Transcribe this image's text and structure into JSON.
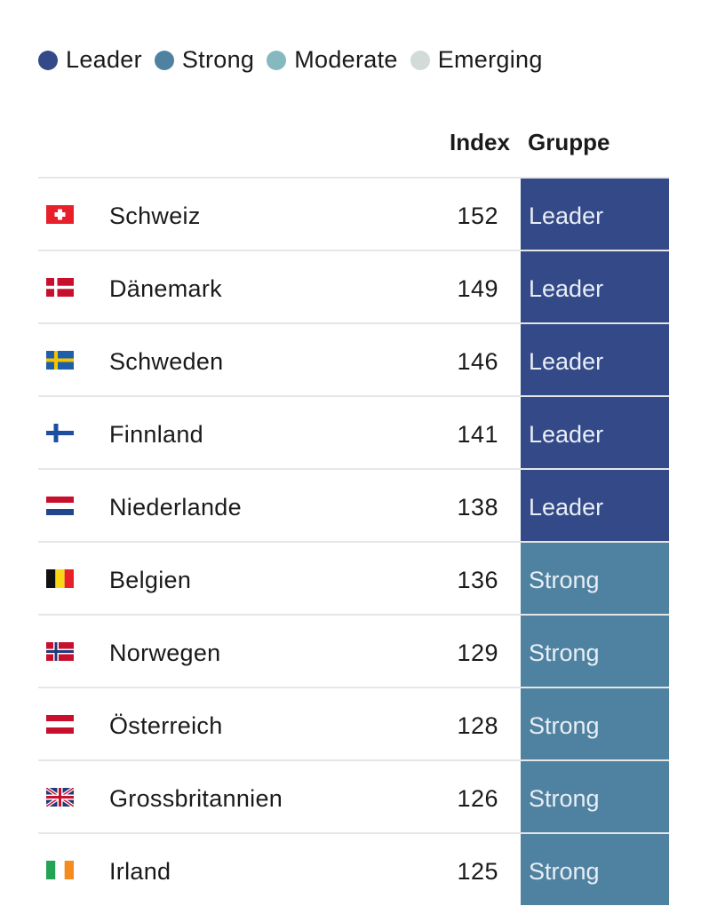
{
  "colors": {
    "Leader": "#344a88",
    "Strong": "#4f82a1",
    "Moderate": "#86b8bf",
    "Emerging": "#d2dbd8"
  },
  "legend": [
    {
      "label": "Leader",
      "color": "#344a88"
    },
    {
      "label": "Strong",
      "color": "#4f82a1"
    },
    {
      "label": "Moderate",
      "color": "#86b8bf"
    },
    {
      "label": "Emerging",
      "color": "#d2dbd8"
    }
  ],
  "headers": {
    "index": "Index",
    "group": "Gruppe"
  },
  "chart_data": {
    "type": "table",
    "columns": [
      "",
      "",
      "Index",
      "Gruppe"
    ],
    "rows": [
      {
        "flag": "flag-switzerland-icon",
        "country": "Schweiz",
        "index": 152,
        "group": "Leader"
      },
      {
        "flag": "flag-denmark-icon",
        "country": "Dänemark",
        "index": 149,
        "group": "Leader"
      },
      {
        "flag": "flag-sweden-icon",
        "country": "Schweden",
        "index": 146,
        "group": "Leader"
      },
      {
        "flag": "flag-finland-icon",
        "country": "Finnland",
        "index": 141,
        "group": "Leader"
      },
      {
        "flag": "flag-netherlands-icon",
        "country": "Niederlande",
        "index": 138,
        "group": "Leader"
      },
      {
        "flag": "flag-belgium-icon",
        "country": "Belgien",
        "index": 136,
        "group": "Strong"
      },
      {
        "flag": "flag-norway-icon",
        "country": "Norwegen",
        "index": 129,
        "group": "Strong"
      },
      {
        "flag": "flag-austria-icon",
        "country": "Österreich",
        "index": 128,
        "group": "Strong"
      },
      {
        "flag": "flag-uk-icon",
        "country": "Grossbritannien",
        "index": 126,
        "group": "Strong"
      },
      {
        "flag": "flag-ireland-icon",
        "country": "Irland",
        "index": 125,
        "group": "Strong"
      }
    ]
  }
}
